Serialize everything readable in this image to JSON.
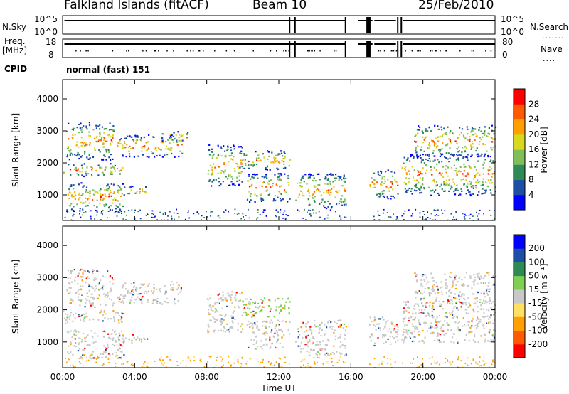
{
  "header": {
    "station": "Falkland Islands (fitACF)",
    "beam": "Beam 10",
    "date": "25/Feb/2010"
  },
  "status_panels": {
    "nsky_label": "N.Sky",
    "nsearch_label": "N.Search",
    "nsky_ticks": [
      "10^5",
      "10^0"
    ],
    "nsearch_ticks": [
      "10^5",
      "10^0"
    ],
    "freq_label_1": "Freq.",
    "freq_label_2": "[MHz]",
    "freq_ticks": [
      "18",
      "8"
    ],
    "nave_label": "Nave",
    "nave_ticks": [
      "80",
      "0"
    ],
    "cpid_label": "CPID",
    "cpid_value": "normal (fast) 151"
  },
  "colors": {
    "power_scale": [
      "#0000ff",
      "#1c4ea6",
      "#2e8b57",
      "#7fbf5a",
      "#d8d820",
      "#ffa000",
      "#ff5a00",
      "#ff0000"
    ],
    "velocity_scale": [
      "#ff0000",
      "#ff5a00",
      "#ffa000",
      "#ffe060",
      "#c8c8c8",
      "#7fd050",
      "#2e8b57",
      "#1c4ea6",
      "#0000ff"
    ]
  },
  "chart_data": [
    {
      "type": "heatmap",
      "panel": "power",
      "ylabel": "Slant Range [km]",
      "ylim": [
        200,
        4600
      ],
      "yticks": [
        1000,
        2000,
        3000,
        4000
      ],
      "xticks": [
        "00:00",
        "04:00",
        "08:00",
        "12:00",
        "16:00",
        "20:00",
        "00:00"
      ],
      "colorbar_label": "Power [dB]",
      "colorbar_ticks": [
        "4",
        "8",
        "12",
        "16",
        "20",
        "24",
        "28"
      ],
      "data_gaps_ut": [
        [
          12.6,
          12.9
        ],
        [
          15.7,
          17.0
        ],
        [
          18.6,
          18.8
        ]
      ],
      "bands": [
        {
          "t0": 0.0,
          "t1": 3.3,
          "r0": 1600,
          "r1": 2000
        },
        {
          "t0": 0.2,
          "t1": 2.8,
          "r0": 2100,
          "r1": 3300
        },
        {
          "t0": 0.2,
          "t1": 3.4,
          "r0": 500,
          "r1": 1400
        },
        {
          "t0": 2.6,
          "t1": 4.7,
          "r0": 1000,
          "r1": 1300
        },
        {
          "t0": 3.0,
          "t1": 6.6,
          "r0": 2200,
          "r1": 2900
        },
        {
          "t0": 5.5,
          "t1": 7.2,
          "r0": 2700,
          "r1": 3000
        },
        {
          "t0": 8.0,
          "t1": 10.0,
          "r0": 1300,
          "r1": 2600
        },
        {
          "t0": 9.8,
          "t1": 12.6,
          "r0": 1800,
          "r1": 2400
        },
        {
          "t0": 10.2,
          "t1": 12.6,
          "r0": 800,
          "r1": 1700
        },
        {
          "t0": 12.9,
          "t1": 15.7,
          "r0": 600,
          "r1": 1700
        },
        {
          "t0": 17.0,
          "t1": 18.6,
          "r0": 900,
          "r1": 1800
        },
        {
          "t0": 18.8,
          "t1": 24.0,
          "r0": 1000,
          "r1": 2300
        },
        {
          "t0": 19.5,
          "t1": 24.0,
          "r0": 2200,
          "r1": 3200
        }
      ]
    },
    {
      "type": "heatmap",
      "panel": "velocity",
      "ylabel": "Slant Range [km]",
      "ylim": [
        200,
        4600
      ],
      "yticks": [
        1000,
        2000,
        3000,
        4000
      ],
      "xticks": [
        "00:00",
        "04:00",
        "08:00",
        "12:00",
        "16:00",
        "20:00",
        "00:00"
      ],
      "xlabel": "Time UT",
      "colorbar_label": "Velocity [m s⁻¹]",
      "colorbar_ticks": [
        "-200",
        "-100",
        "-50",
        "-15",
        "15",
        "50",
        "100",
        "200"
      ],
      "data_gaps_ut": [
        [
          12.6,
          12.9
        ],
        [
          15.7,
          17.0
        ],
        [
          18.6,
          18.8
        ]
      ],
      "bands": [
        {
          "t0": 0.0,
          "t1": 3.3,
          "r0": 1600,
          "r1": 2000
        },
        {
          "t0": 0.2,
          "t1": 2.8,
          "r0": 2100,
          "r1": 3300
        },
        {
          "t0": 0.2,
          "t1": 3.4,
          "r0": 500,
          "r1": 1400
        },
        {
          "t0": 2.6,
          "t1": 4.7,
          "r0": 1000,
          "r1": 1300
        },
        {
          "t0": 3.0,
          "t1": 6.6,
          "r0": 2200,
          "r1": 2900
        },
        {
          "t0": 8.0,
          "t1": 10.0,
          "r0": 1300,
          "r1": 2600
        },
        {
          "t0": 9.8,
          "t1": 12.6,
          "r0": 1800,
          "r1": 2400
        },
        {
          "t0": 10.2,
          "t1": 12.6,
          "r0": 800,
          "r1": 1700
        },
        {
          "t0": 12.9,
          "t1": 15.7,
          "r0": 600,
          "r1": 1700
        },
        {
          "t0": 17.0,
          "t1": 18.6,
          "r0": 900,
          "r1": 1800
        },
        {
          "t0": 18.8,
          "t1": 24.0,
          "r0": 1000,
          "r1": 2300
        },
        {
          "t0": 19.5,
          "t1": 24.0,
          "r0": 2200,
          "r1": 3200
        }
      ]
    }
  ]
}
